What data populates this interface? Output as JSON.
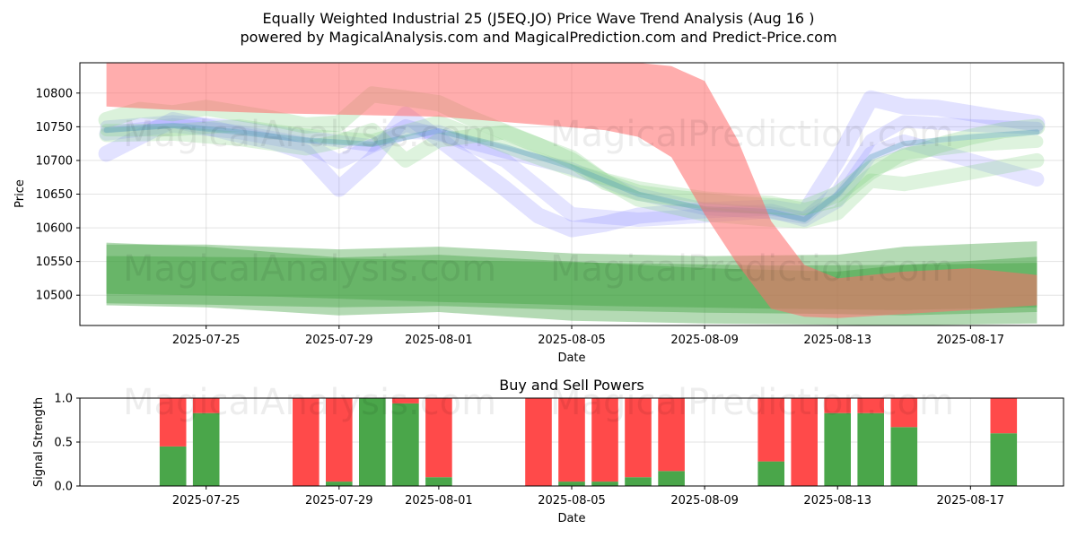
{
  "chart_data": [
    {
      "type": "area",
      "title_line1": "Equally Weighted Industrial 25  (J5EQ.JO) Price Wave Trend Analysis (Aug 16 )",
      "title_line2": "powered by MagicalAnalysis.com and MagicalPrediction.com and Predict-Price.com",
      "xlabel": "Date",
      "ylabel": "Price",
      "xlim": [
        -0.8,
        28.8
      ],
      "ylim": [
        10455,
        10845
      ],
      "x_tick_indices": [
        3,
        7,
        10,
        14,
        18,
        22,
        26
      ],
      "x_tick_labels": [
        "2025-07-25",
        "2025-07-29",
        "2025-08-01",
        "2025-08-05",
        "2025-08-09",
        "2025-08-13",
        "2025-08-17"
      ],
      "y_ticks": [
        10500,
        10550,
        10600,
        10650,
        10700,
        10750,
        10800
      ],
      "grid": true,
      "watermarks": [
        "MagicalAnalysis.com",
        "MagicalPrediction.com"
      ],
      "red_band": {
        "x": [
          0,
          2,
          5,
          10,
          15,
          16,
          17,
          18,
          19,
          20,
          21,
          22,
          24,
          26,
          28
        ],
        "lower": [
          10780,
          10775,
          10770,
          10765,
          10745,
          10735,
          10705,
          10620,
          10545,
          10480,
          10468,
          10466,
          10472,
          10478,
          10485
        ],
        "upper": [
          10845,
          10845,
          10845,
          10845,
          10845,
          10845,
          10840,
          10818,
          10730,
          10610,
          10545,
          10525,
          10535,
          10540,
          10530
        ]
      },
      "green_bands": [
        {
          "x": [
            0,
            3,
            7,
            10,
            14,
            18,
            22,
            24,
            28
          ],
          "lower": [
            10485,
            10482,
            10470,
            10475,
            10462,
            10458,
            10456,
            10455,
            10458
          ],
          "upper": [
            10575,
            10575,
            10568,
            10572,
            10562,
            10558,
            10560,
            10572,
            10580
          ]
        },
        {
          "x": [
            0,
            3,
            7,
            10,
            14,
            18,
            22,
            24,
            28
          ],
          "lower": [
            10488,
            10486,
            10482,
            10484,
            10478,
            10474,
            10472,
            10470,
            10475
          ],
          "upper": [
            10578,
            10572,
            10556,
            10560,
            10550,
            10540,
            10535,
            10545,
            10557
          ]
        },
        {
          "x": [
            0,
            5,
            10,
            15,
            20,
            24,
            28
          ],
          "lower": [
            10502,
            10498,
            10490,
            10484,
            10480,
            10478,
            10482
          ],
          "upper": [
            10558,
            10556,
            10552,
            10548,
            10544,
            10545,
            10548
          ]
        }
      ],
      "wave_lines": [
        {
          "color": "#7b7bff",
          "width": 18,
          "opacity": 0.22,
          "x": [
            0,
            1,
            2,
            3,
            4,
            5,
            6,
            7,
            8,
            9,
            10,
            11,
            12,
            13,
            14,
            15,
            16,
            17,
            18,
            19,
            20,
            21,
            22,
            23,
            24,
            25,
            26,
            27,
            28
          ],
          "y": [
            10710,
            10735,
            10760,
            10750,
            10738,
            10728,
            10712,
            10658,
            10702,
            10768,
            10732,
            10695,
            10658,
            10618,
            10598,
            10606,
            10618,
            10622,
            10626,
            10628,
            10630,
            10622,
            10700,
            10792,
            10780,
            10778,
            10770,
            10762,
            10755
          ]
        },
        {
          "color": "#7b7bff",
          "width": 16,
          "opacity": 0.2,
          "x": [
            0,
            2,
            4,
            6,
            7,
            8,
            9,
            10,
            12,
            13,
            14,
            16,
            18,
            20,
            21,
            22,
            23,
            24,
            26,
            28
          ],
          "y": [
            10740,
            10752,
            10742,
            10724,
            10698,
            10722,
            10742,
            10742,
            10700,
            10660,
            10620,
            10612,
            10618,
            10625,
            10612,
            10640,
            10710,
            10728,
            10700,
            10672
          ]
        },
        {
          "color": "#7b7bff",
          "width": 14,
          "opacity": 0.22,
          "x": [
            0,
            2,
            4,
            6,
            8,
            9,
            10,
            12,
            14,
            16,
            18,
            20,
            21,
            22,
            23,
            24,
            26,
            28
          ],
          "y": [
            10750,
            10758,
            10750,
            10735,
            10722,
            10752,
            10738,
            10712,
            10688,
            10650,
            10628,
            10622,
            10615,
            10655,
            10730,
            10758,
            10752,
            10748
          ]
        },
        {
          "color": "#7ecf7e",
          "width": 18,
          "opacity": 0.28,
          "x": [
            0,
            1,
            2,
            3,
            4,
            5,
            6,
            7,
            8,
            9,
            10,
            11,
            12,
            13,
            14,
            15,
            16,
            17,
            18,
            19,
            20,
            21,
            22,
            23,
            24,
            25,
            26,
            27,
            28
          ],
          "y": [
            10760,
            10775,
            10770,
            10778,
            10770,
            10762,
            10752,
            10755,
            10798,
            10792,
            10785,
            10762,
            10742,
            10722,
            10700,
            10668,
            10652,
            10645,
            10640,
            10635,
            10632,
            10630,
            10650,
            10688,
            10705,
            10722,
            10735,
            10745,
            10750
          ]
        },
        {
          "color": "#7ecf7e",
          "width": 16,
          "opacity": 0.26,
          "x": [
            0,
            2,
            4,
            6,
            7,
            8,
            9,
            10,
            12,
            14,
            15,
            16,
            18,
            20,
            21,
            22,
            23,
            24,
            26,
            28
          ],
          "y": [
            10738,
            10740,
            10732,
            10718,
            10728,
            10745,
            10700,
            10730,
            10742,
            10705,
            10670,
            10642,
            10620,
            10612,
            10610,
            10622,
            10670,
            10665,
            10682,
            10700
          ]
        },
        {
          "color": "#7ecf7e",
          "width": 14,
          "opacity": 0.26,
          "x": [
            0,
            2,
            4,
            6,
            8,
            10,
            12,
            14,
            16,
            18,
            20,
            21,
            22,
            23,
            24,
            26,
            28
          ],
          "y": [
            10745,
            10745,
            10752,
            10738,
            10730,
            10758,
            10720,
            10685,
            10660,
            10645,
            10638,
            10628,
            10640,
            10680,
            10710,
            10722,
            10728
          ]
        },
        {
          "color": "#4f9fb8",
          "width": 6,
          "opacity": 0.35,
          "x": [
            0,
            2,
            4,
            6,
            8,
            10,
            12,
            14,
            16,
            18,
            20,
            21,
            22,
            23,
            24,
            26,
            28
          ],
          "y": [
            10745,
            10752,
            10742,
            10730,
            10724,
            10744,
            10720,
            10690,
            10650,
            10628,
            10624,
            10612,
            10650,
            10705,
            10725,
            10735,
            10742
          ]
        }
      ]
    },
    {
      "type": "bar",
      "title": "Buy and Sell Powers",
      "xlabel": "Date",
      "ylabel": "Signal Strength",
      "ylim": [
        0,
        1.0
      ],
      "y_tick_labels": [
        "0.0",
        "0.5",
        "1.0"
      ],
      "x_tick_indices": [
        3,
        7,
        10,
        14,
        18,
        22,
        26
      ],
      "x_tick_labels": [
        "2025-07-25",
        "2025-07-29",
        "2025-08-01",
        "2025-08-05",
        "2025-08-09",
        "2025-08-13",
        "2025-08-17"
      ],
      "bars": [
        {
          "x": 2,
          "buy": 0.45,
          "sell": 0.55
        },
        {
          "x": 3,
          "buy": 0.83,
          "sell": 0.17
        },
        {
          "x": 6,
          "buy": 0.0,
          "sell": 1.0
        },
        {
          "x": 7,
          "buy": 0.05,
          "sell": 0.95
        },
        {
          "x": 8,
          "buy": 1.0,
          "sell": 0.0
        },
        {
          "x": 9,
          "buy": 0.94,
          "sell": 0.06
        },
        {
          "x": 10,
          "buy": 0.1,
          "sell": 0.9
        },
        {
          "x": 13,
          "buy": 0.0,
          "sell": 1.0
        },
        {
          "x": 14,
          "buy": 0.05,
          "sell": 0.95
        },
        {
          "x": 15,
          "buy": 0.05,
          "sell": 0.95
        },
        {
          "x": 16,
          "buy": 0.1,
          "sell": 0.9
        },
        {
          "x": 17,
          "buy": 0.17,
          "sell": 0.83
        },
        {
          "x": 20,
          "buy": 0.28,
          "sell": 0.72
        },
        {
          "x": 21,
          "buy": 0.0,
          "sell": 1.0
        },
        {
          "x": 22,
          "buy": 0.83,
          "sell": 0.17
        },
        {
          "x": 23,
          "buy": 0.83,
          "sell": 0.17
        },
        {
          "x": 24,
          "buy": 0.67,
          "sell": 0.33
        },
        {
          "x": 27,
          "buy": 0.6,
          "sell": 0.4
        }
      ],
      "buy_color": "#4aa64a",
      "sell_color": "#ff4a4a"
    }
  ]
}
